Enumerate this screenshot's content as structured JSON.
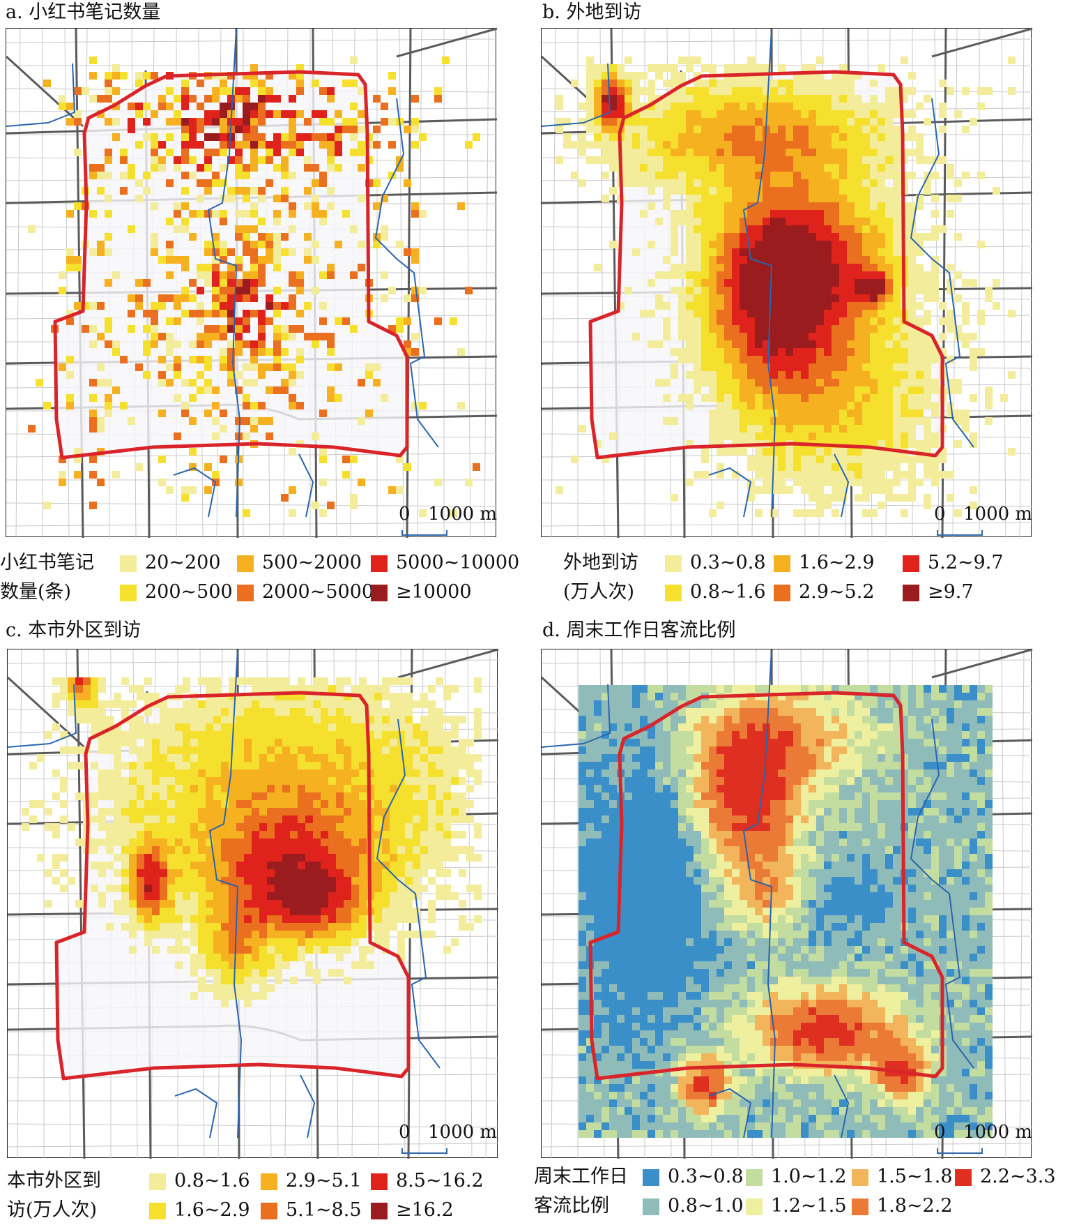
{
  "panels": [
    {
      "id": "a",
      "title": "a. 小红书笔记数量",
      "legend_title_lines": [
        "小红书笔记",
        "数量(条)"
      ],
      "classes": [
        "20~200",
        "200~500",
        "500~2000",
        "2000~5000",
        "5000~10000",
        "≥10000"
      ],
      "colors": [
        "#f3ec9a",
        "#f6e02e",
        "#f5b120",
        "#ea6f1e",
        "#df231c",
        "#9b1c1e"
      ],
      "pattern": "sparse-notes",
      "scale": {
        "zero": "0",
        "distance": "1000 m"
      }
    },
    {
      "id": "b",
      "title": "b. 外地到访",
      "legend_title_lines": [
        "外地到访",
        "(万人次)"
      ],
      "classes": [
        "0.3~0.8",
        "0.8~1.6",
        "1.6~2.9",
        "2.9~5.2",
        "5.2~9.7",
        "≥9.7"
      ],
      "colors": [
        "#f3ec9a",
        "#f6e02e",
        "#f5b120",
        "#ea6f1e",
        "#df231c",
        "#9b1c1e"
      ],
      "pattern": "visitors-nonlocal",
      "scale": {
        "zero": "0",
        "distance": "1000 m"
      }
    },
    {
      "id": "c",
      "title": "c. 本市外区到访",
      "legend_title_lines": [
        "本市外区到",
        "访(万人次)"
      ],
      "classes": [
        "0.8~1.6",
        "1.6~2.9",
        "2.9~5.1",
        "5.1~8.5",
        "8.5~16.2",
        "≥16.2"
      ],
      "colors": [
        "#f3ec9a",
        "#f6e02e",
        "#f5b120",
        "#ea6f1e",
        "#df231c",
        "#9b1c1e"
      ],
      "pattern": "visitors-city",
      "scale": {
        "zero": "0",
        "distance": "1000 m"
      }
    },
    {
      "id": "d",
      "title": "d. 周末工作日客流比例",
      "legend_title_lines": [
        "周末工作日",
        "客流比例"
      ],
      "classes": [
        "0.3~0.8",
        "0.8~1.0",
        "1.0~1.2",
        "1.2~1.5",
        "1.5~1.8",
        "1.8~2.2",
        "2.2~3.3"
      ],
      "colors": [
        "#3a8fc9",
        "#8fbcb8",
        "#c3dca0",
        "#eef0a0",
        "#f3b55c",
        "#ea7a36",
        "#df2f20"
      ],
      "pattern": "weekend-ratio",
      "scale": {
        "zero": "0",
        "distance": "1000 m"
      }
    }
  ],
  "styles": {
    "ring_road_color": "#d9242a",
    "district_boundary_color": "#2a65ad",
    "major_road_color": "#5b5b5b",
    "minor_road_color": "#c9c9c9",
    "inner_fill_color": "#f6f6fa"
  }
}
